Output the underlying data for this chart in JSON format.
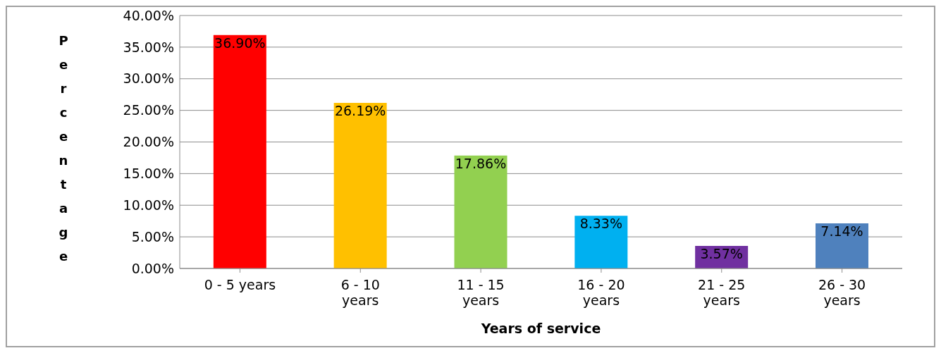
{
  "chart_data": {
    "type": "bar",
    "xlabel": "Years of service",
    "ylabel": "Percentage",
    "categories": [
      "0 - 5 years",
      "6 - 10 years",
      "11 - 15 years",
      "16 - 20 years",
      "21 - 25 years",
      "26 - 30 years"
    ],
    "values": [
      36.9,
      26.19,
      17.86,
      8.33,
      3.57,
      7.14
    ],
    "colors": [
      "#ff0000",
      "#ffc000",
      "#92d050",
      "#00b0f0",
      "#7030a0",
      "#4f81bd"
    ],
    "value_labels": [
      "36.90%",
      "26.19%",
      "17.86%",
      "8.33%",
      "3.57%",
      "7.14%"
    ],
    "ylim": [
      0,
      40
    ],
    "yticks": [
      {
        "value": 0,
        "label": "0.00%"
      },
      {
        "value": 5,
        "label": "5.00%"
      },
      {
        "value": 10,
        "label": "10.00%"
      },
      {
        "value": 15,
        "label": "15.00%"
      },
      {
        "value": 20,
        "label": "20.00%"
      },
      {
        "value": 25,
        "label": "25.00%"
      },
      {
        "value": 30,
        "label": "30.00%"
      },
      {
        "value": 35,
        "label": "35.00%"
      },
      {
        "value": 40,
        "label": "40.00%"
      }
    ],
    "grid": "y",
    "legend": false
  }
}
